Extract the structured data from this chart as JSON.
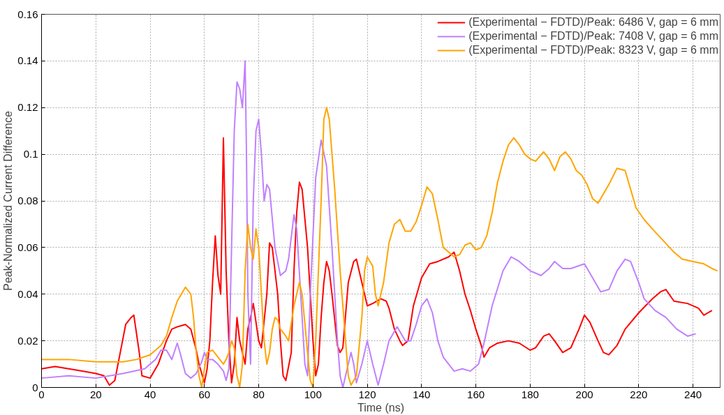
{
  "chart_data": {
    "type": "line",
    "xlabel": "Time (ns)",
    "ylabel": "Peak-Normalized Current Difference",
    "xlim": [
      0,
      250
    ],
    "ylim": [
      0,
      0.16
    ],
    "xticks": [
      0,
      20,
      40,
      60,
      80,
      100,
      120,
      140,
      160,
      180,
      200,
      220,
      240
    ],
    "yticks": [
      0,
      0.02,
      0.04,
      0.06,
      0.08,
      0.1,
      0.12,
      0.14,
      0.16
    ],
    "grid": true,
    "legend": "top right",
    "marker": "none",
    "line_style": "solid",
    "series": [
      {
        "name": "(Experimental − FDTD)/Peak: 6486 V, gap = 6 mm",
        "color": "#ff0000",
        "x": [
          0,
          5,
          10,
          15,
          20,
          23,
          25,
          27,
          29,
          31,
          33,
          34,
          36,
          37,
          40,
          43,
          46,
          48,
          50,
          53,
          55,
          57,
          58,
          60,
          61,
          62,
          63,
          64,
          65,
          66,
          67,
          68,
          69,
          70,
          71,
          72,
          73,
          75,
          76,
          77,
          78,
          80,
          81,
          83,
          84,
          85,
          87,
          88,
          89,
          90,
          92,
          93,
          94,
          95,
          96,
          98,
          99,
          100,
          101,
          102,
          103,
          104,
          105,
          106,
          107,
          109,
          110,
          111,
          113,
          115,
          116,
          118,
          119,
          120,
          122,
          125,
          127,
          128,
          130,
          132,
          133,
          135,
          137,
          140,
          143,
          146,
          150,
          152,
          154,
          156,
          158,
          160,
          162,
          163,
          165,
          168,
          172,
          176,
          180,
          182,
          185,
          187,
          189,
          192,
          195,
          198,
          200,
          202,
          205,
          207,
          209,
          212,
          215,
          220,
          225,
          228,
          230,
          233,
          238,
          242,
          244,
          247
        ],
        "values": [
          0.008,
          0.009,
          0.008,
          0.007,
          0.006,
          0.005,
          0.001,
          0.003,
          0.015,
          0.027,
          0.03,
          0.031,
          0.015,
          0.005,
          0.004,
          0.01,
          0.02,
          0.025,
          0.026,
          0.027,
          0.025,
          0.016,
          0.01,
          0.002,
          0.008,
          0.02,
          0.045,
          0.065,
          0.048,
          0.04,
          0.107,
          0.05,
          0.02,
          0.002,
          0.01,
          0.03,
          0.02,
          0.01,
          0.025,
          0.03,
          0.036,
          0.02,
          0.017,
          0.04,
          0.062,
          0.06,
          0.04,
          0.02,
          0.005,
          0.003,
          0.015,
          0.05,
          0.075,
          0.088,
          0.085,
          0.06,
          0.04,
          0.02,
          0.005,
          0.01,
          0.03,
          0.045,
          0.054,
          0.05,
          0.04,
          0.018,
          0.015,
          0.017,
          0.045,
          0.054,
          0.055,
          0.045,
          0.04,
          0.035,
          0.036,
          0.038,
          0.037,
          0.034,
          0.025,
          0.02,
          0.018,
          0.02,
          0.035,
          0.047,
          0.053,
          0.054,
          0.056,
          0.058,
          0.05,
          0.04,
          0.033,
          0.025,
          0.018,
          0.013,
          0.017,
          0.019,
          0.02,
          0.019,
          0.016,
          0.017,
          0.022,
          0.023,
          0.02,
          0.015,
          0.017,
          0.025,
          0.031,
          0.028,
          0.02,
          0.015,
          0.014,
          0.018,
          0.025,
          0.032,
          0.038,
          0.041,
          0.042,
          0.037,
          0.036,
          0.034,
          0.031,
          0.033
        ]
      },
      {
        "name": "(Experimental − FDTD)/Peak: 7408 V, gap = 6 mm",
        "color": "#c080ff",
        "x": [
          0,
          10,
          20,
          30,
          38,
          42,
          44,
          46,
          48,
          50,
          51,
          53,
          55,
          57,
          59,
          60,
          61,
          63,
          65,
          67,
          68,
          69,
          70,
          71,
          72,
          73,
          74,
          75,
          75.5,
          76,
          77,
          78,
          79,
          80,
          81,
          82,
          83,
          84,
          86,
          88,
          90,
          91,
          93,
          94,
          96,
          97,
          98,
          99,
          101,
          103,
          105,
          107,
          109,
          110,
          111,
          113,
          114,
          115,
          116,
          118,
          120,
          122,
          124,
          126,
          128,
          131,
          134,
          136,
          138,
          140,
          142,
          144,
          146,
          148,
          150,
          152,
          155,
          158,
          161,
          163,
          166,
          170,
          173,
          176,
          180,
          184,
          187,
          189,
          192,
          195,
          200,
          203,
          206,
          209,
          212,
          215,
          217,
          220,
          222,
          226,
          230,
          234,
          238,
          241
        ],
        "values": [
          0.004,
          0.005,
          0.004,
          0.006,
          0.008,
          0.012,
          0.016,
          0.016,
          0.012,
          0.019,
          0.015,
          0.006,
          0.004,
          0.006,
          0.011,
          0.015,
          0.012,
          0.012,
          0.01,
          0.007,
          0.003,
          0.008,
          0.06,
          0.11,
          0.131,
          0.128,
          0.12,
          0.14,
          0.1,
          0.04,
          0.01,
          0.08,
          0.11,
          0.115,
          0.1,
          0.08,
          0.087,
          0.085,
          0.06,
          0.048,
          0.05,
          0.055,
          0.074,
          0.068,
          0.03,
          0.01,
          0.005,
          0.04,
          0.09,
          0.106,
          0.095,
          0.06,
          0.02,
          0.005,
          0.0,
          0.01,
          0.015,
          0.01,
          0.002,
          0.01,
          0.02,
          0.01,
          0.001,
          0.01,
          0.02,
          0.026,
          0.02,
          0.02,
          0.027,
          0.035,
          0.038,
          0.032,
          0.02,
          0.013,
          0.01,
          0.007,
          0.008,
          0.007,
          0.01,
          0.019,
          0.035,
          0.05,
          0.056,
          0.054,
          0.05,
          0.048,
          0.051,
          0.054,
          0.051,
          0.051,
          0.053,
          0.047,
          0.041,
          0.042,
          0.05,
          0.055,
          0.054,
          0.045,
          0.038,
          0.033,
          0.03,
          0.025,
          0.022,
          0.023
        ]
      },
      {
        "name": "(Experimental − FDTD)/Peak: 8323 V, gap = 6 mm",
        "color": "#ffa500",
        "x": [
          0,
          10,
          20,
          26,
          30,
          35,
          40,
          44,
          46,
          48,
          50,
          52,
          53,
          55,
          56,
          57,
          58,
          59,
          60,
          61,
          63,
          65,
          67,
          68,
          69,
          70,
          71,
          72,
          73,
          74,
          75,
          76,
          77,
          78,
          79,
          80,
          81,
          82,
          83,
          84,
          85,
          86,
          87,
          88,
          90,
          91,
          93,
          95,
          96,
          98,
          99,
          100,
          101,
          103,
          104,
          105,
          106,
          108,
          110,
          112,
          113,
          114,
          116,
          118,
          119,
          120,
          122,
          123,
          124,
          126,
          128,
          130,
          132,
          134,
          136,
          138,
          140,
          142,
          144,
          146,
          148,
          150,
          152,
          154,
          156,
          158,
          160,
          162,
          164,
          166,
          168,
          170,
          172,
          174,
          176,
          178,
          180,
          182,
          185,
          187,
          189,
          191,
          193,
          195,
          197,
          199,
          201,
          203,
          205,
          207,
          209,
          212,
          215,
          217,
          219,
          222,
          225,
          229,
          233,
          236,
          240,
          244,
          247,
          249
        ],
        "values": [
          0.012,
          0.012,
          0.011,
          0.011,
          0.011,
          0.012,
          0.014,
          0.018,
          0.022,
          0.03,
          0.037,
          0.041,
          0.043,
          0.04,
          0.03,
          0.015,
          0.005,
          0.0,
          0.008,
          0.015,
          0.016,
          0.013,
          0.01,
          0.012,
          0.015,
          0.02,
          0.017,
          0.005,
          0.0,
          0.01,
          0.05,
          0.07,
          0.06,
          0.055,
          0.068,
          0.06,
          0.04,
          0.02,
          0.01,
          0.015,
          0.025,
          0.03,
          0.029,
          0.025,
          0.022,
          0.02,
          0.035,
          0.045,
          0.04,
          0.015,
          0.003,
          0.0,
          0.02,
          0.08,
          0.115,
          0.12,
          0.115,
          0.085,
          0.05,
          0.02,
          0.005,
          0.001,
          0.005,
          0.03,
          0.05,
          0.056,
          0.052,
          0.04,
          0.035,
          0.045,
          0.062,
          0.07,
          0.072,
          0.067,
          0.067,
          0.071,
          0.078,
          0.086,
          0.083,
          0.072,
          0.06,
          0.058,
          0.056,
          0.057,
          0.061,
          0.062,
          0.059,
          0.06,
          0.065,
          0.075,
          0.088,
          0.097,
          0.104,
          0.107,
          0.104,
          0.1,
          0.098,
          0.097,
          0.101,
          0.098,
          0.093,
          0.099,
          0.101,
          0.098,
          0.093,
          0.091,
          0.087,
          0.081,
          0.079,
          0.083,
          0.087,
          0.094,
          0.093,
          0.085,
          0.077,
          0.072,
          0.068,
          0.063,
          0.058,
          0.055,
          0.054,
          0.053,
          0.051,
          0.05
        ]
      }
    ]
  }
}
